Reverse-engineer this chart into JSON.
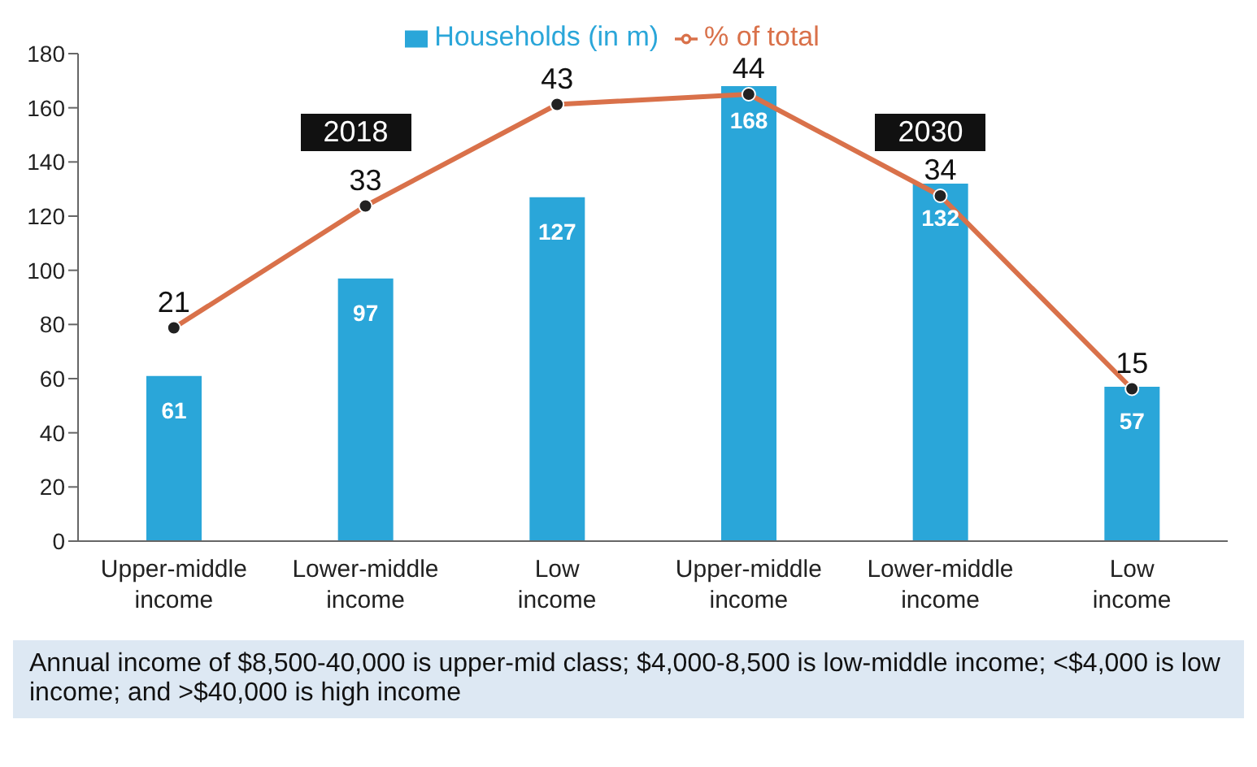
{
  "chart_data": {
    "type": "bar",
    "categories": [
      "Upper-middle income",
      "Lower-middle income",
      "Low income",
      "Upper-middle income",
      "Lower-middle income",
      "Low income"
    ],
    "series": [
      {
        "name": "Households (in m)",
        "color": "#2aa6d9",
        "values": [
          61,
          97,
          127,
          168,
          132,
          57
        ]
      },
      {
        "name": "% of total",
        "type": "line",
        "axis": "y2",
        "color": "#d9714a",
        "values": [
          21,
          33,
          43,
          44,
          34,
          15
        ]
      }
    ],
    "ylim": [
      0,
      180
    ],
    "yticks": [
      0,
      20,
      40,
      60,
      80,
      100,
      120,
      140,
      160,
      180
    ],
    "y2lim": [
      0,
      48
    ],
    "data_labels": true,
    "marker": "circle",
    "line_style": "solid",
    "grid": false,
    "legend": "top",
    "annotations": [
      "2018",
      "2030",
      "Annual income of $8,500-40,000 is upper-mid class; $4,000-8,500 is low-middle income; <$4,000 is low income; and >$40,000 is high income"
    ]
  }
}
